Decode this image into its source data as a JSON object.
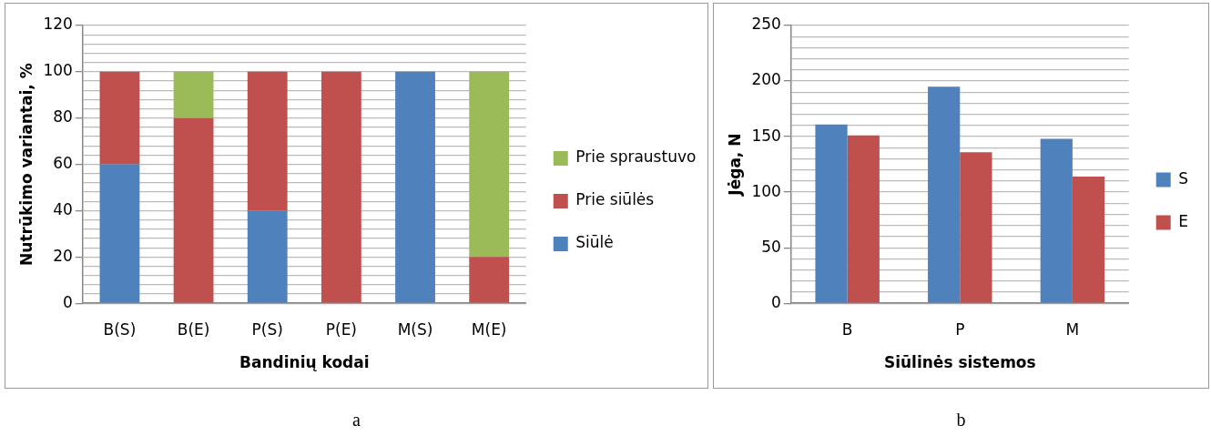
{
  "chart_data": [
    {
      "type": "bar",
      "stacked": true,
      "xlabel": "Bandinių kodai",
      "ylabel": "Nutrūkimo variantai, %",
      "categories": [
        "B(S)",
        "B(E)",
        "P(S)",
        "P(E)",
        "M(S)",
        "M(E)"
      ],
      "series": [
        {
          "name": "Siūlė",
          "color": "#4f81bd",
          "values": [
            60,
            0,
            40,
            0,
            100,
            0
          ]
        },
        {
          "name": "Prie siūlės",
          "color": "#c0504d",
          "values": [
            40,
            80,
            60,
            100,
            0,
            20
          ]
        },
        {
          "name": "Prie spraustuvo",
          "color": "#9bbb59",
          "values": [
            0,
            20,
            0,
            0,
            0,
            80
          ]
        }
      ],
      "ylim": [
        0,
        120
      ],
      "yticks": [
        0,
        {
          "value": 4,
          "label": null
        },
        {
          "value": 8,
          "label": null
        },
        {
          "value": 12,
          "label": null
        },
        {
          "value": 16,
          "label": null
        },
        20,
        {
          "value": 24,
          "label": null
        },
        {
          "value": 28,
          "label": null
        },
        {
          "value": 32,
          "label": null
        },
        {
          "value": 36,
          "label": null
        },
        40,
        {
          "value": 44,
          "label": null
        },
        {
          "value": 48,
          "label": null
        },
        {
          "value": 52,
          "label": null
        },
        {
          "value": 56,
          "label": null
        },
        60,
        {
          "value": 64,
          "label": null
        },
        {
          "value": 68,
          "label": null
        },
        {
          "value": 72,
          "label": null
        },
        {
          "value": 76,
          "label": null
        },
        80,
        {
          "value": 84,
          "label": null
        },
        {
          "value": 88,
          "label": null
        },
        {
          "value": 92,
          "label": null
        },
        {
          "value": 96,
          "label": null
        },
        100,
        {
          "value": 104,
          "label": null
        },
        {
          "value": 108,
          "label": null
        },
        {
          "value": 112,
          "label": null
        },
        {
          "value": 116,
          "label": null
        },
        120
      ],
      "grid": "y",
      "legend": "right",
      "annotations": [
        "a"
      ]
    },
    {
      "type": "bar",
      "xlabel": "Siūlinės sistemos",
      "ylabel": "Jėga, N",
      "categories": [
        "B",
        "P",
        "M"
      ],
      "series": [
        {
          "name": "S",
          "color": "#4f81bd",
          "values": [
            161,
            195,
            148
          ]
        },
        {
          "name": "E",
          "color": "#c0504d",
          "values": [
            151,
            136,
            114
          ]
        }
      ],
      "ylim": [
        0,
        250
      ],
      "yticks": [
        0,
        {
          "value": 10,
          "label": null
        },
        {
          "value": 20,
          "label": null
        },
        {
          "value": 30,
          "label": null
        },
        {
          "value": 40,
          "label": null
        },
        50,
        {
          "value": 60,
          "label": null
        },
        {
          "value": 70,
          "label": null
        },
        {
          "value": 80,
          "label": null
        },
        {
          "value": 90,
          "label": null
        },
        100,
        {
          "value": 110,
          "label": null
        },
        {
          "value": 120,
          "label": null
        },
        {
          "value": 130,
          "label": null
        },
        {
          "value": 140,
          "label": null
        },
        150,
        {
          "value": 160,
          "label": null
        },
        {
          "value": 170,
          "label": null
        },
        {
          "value": 180,
          "label": null
        },
        {
          "value": 190,
          "label": null
        },
        200,
        {
          "value": 210,
          "label": null
        },
        {
          "value": 220,
          "label": null
        },
        {
          "value": 230,
          "label": null
        },
        {
          "value": 240,
          "label": null
        },
        250
      ],
      "grid": "y",
      "legend": "right",
      "annotations": [
        "b"
      ]
    }
  ]
}
